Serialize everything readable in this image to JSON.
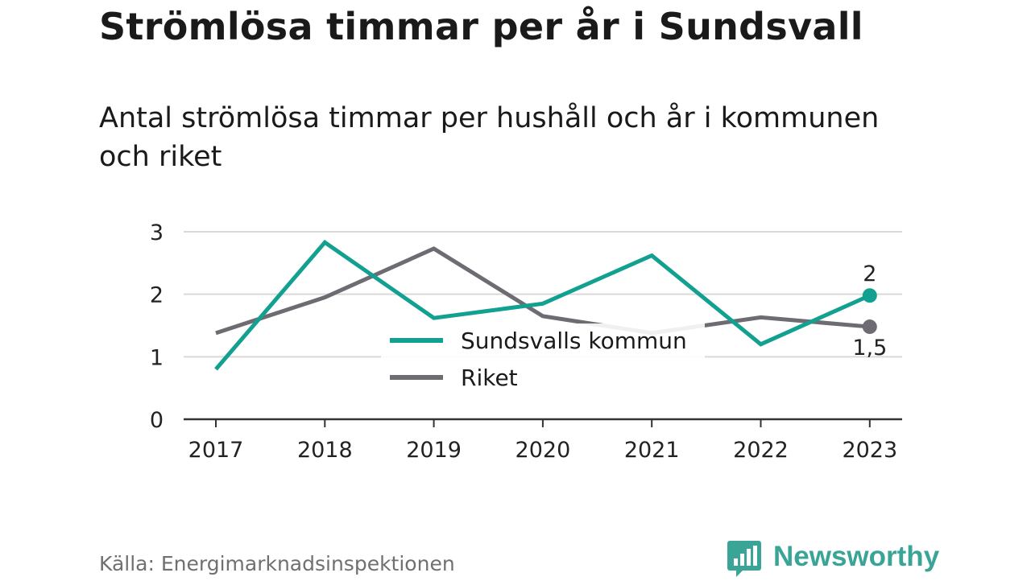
{
  "header": {
    "title": "Strömlösa timmar per år i Sundsvall",
    "subtitle": "Antal strömlösa timmar per hushåll och år i kommunen och riket"
  },
  "footer": {
    "source": "Källa: Energimarknadsinspektionen",
    "brand": "Newsworthy"
  },
  "colors": {
    "sundsvall": "#12a090",
    "riket": "#6e6c72",
    "grid": "#d9d9d9",
    "axis": "#333333"
  },
  "chart_data": {
    "type": "line",
    "title": "Strömlösa timmar per år i Sundsvall",
    "subtitle": "Antal strömlösa timmar per hushåll och år i kommunen och riket",
    "categories": [
      "2017",
      "2018",
      "2019",
      "2020",
      "2021",
      "2022",
      "2023"
    ],
    "series": [
      {
        "name": "Sundsvalls kommun",
        "color": "#12a090",
        "values": [
          0.8,
          2.83,
          1.62,
          1.85,
          2.62,
          1.2,
          1.98
        ],
        "end_label": "2"
      },
      {
        "name": "Riket",
        "color": "#6e6c72",
        "values": [
          1.38,
          1.95,
          2.73,
          1.65,
          1.38,
          1.63,
          1.48
        ],
        "end_label": "1,5"
      }
    ],
    "y_ticks": [
      "0",
      "1",
      "2",
      "3"
    ],
    "ylim": [
      0,
      3
    ],
    "grid": true,
    "legend_position": "center"
  }
}
